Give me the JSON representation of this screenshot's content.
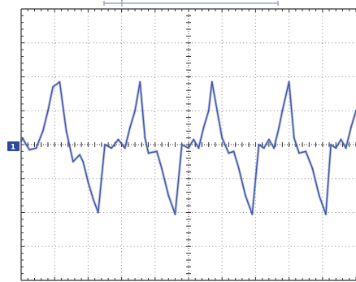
{
  "colors": {
    "background": "#ffffff",
    "grid": "#8a8a8a",
    "frame": "#333333",
    "trace": "#3e56a8",
    "marker_fill": "#2d4a9e",
    "trigger_bar": "#9aa6cc"
  },
  "channel_marker": {
    "label": "1"
  },
  "chart_data": {
    "type": "line",
    "title": "",
    "xlabel": "",
    "ylabel": "",
    "grid": true,
    "divisions": {
      "x": 10,
      "y": 8
    },
    "xlim": [
      0,
      10
    ],
    "ylim": [
      -4,
      4
    ],
    "series": [
      {
        "x": [
          0.0,
          0.05,
          0.15,
          0.25,
          0.45,
          0.65,
          0.8,
          0.95,
          1.15,
          1.35,
          1.55,
          1.75,
          1.85,
          2.0,
          2.15,
          2.3,
          2.5,
          2.7,
          2.9,
          3.1,
          3.25,
          3.4,
          3.55,
          3.7,
          3.8,
          4.05,
          4.2,
          4.4,
          4.6,
          4.8,
          5.0,
          5.15,
          5.3,
          5.45,
          5.6,
          5.7,
          6.0,
          6.2,
          6.35,
          6.5,
          6.7,
          6.9,
          7.1,
          7.25,
          7.4,
          7.55,
          7.7,
          7.8,
          8.0,
          8.15,
          8.3,
          8.5,
          8.7,
          8.9,
          9.1,
          9.25,
          9.4,
          9.55,
          9.7,
          9.85,
          10.0
        ],
        "y": [
          0.1,
          0.18,
          0.0,
          -0.15,
          -0.1,
          0.4,
          1.0,
          1.7,
          1.85,
          0.4,
          -0.5,
          -0.3,
          -0.5,
          -1.1,
          -1.6,
          -2.0,
          0.0,
          -0.1,
          0.15,
          -0.1,
          0.5,
          1.0,
          1.85,
          0.2,
          -0.25,
          -0.2,
          -0.7,
          -1.5,
          -2.05,
          0.0,
          -0.1,
          0.15,
          -0.1,
          0.5,
          1.0,
          1.85,
          0.2,
          -0.25,
          -0.2,
          -0.7,
          -1.5,
          -2.05,
          0.0,
          -0.1,
          0.15,
          -0.1,
          0.5,
          1.0,
          1.85,
          0.2,
          -0.25,
          -0.2,
          -0.7,
          -1.5,
          -2.05,
          0.0,
          -0.1,
          0.15,
          -0.1,
          0.5,
          1.0
        ]
      }
    ]
  }
}
